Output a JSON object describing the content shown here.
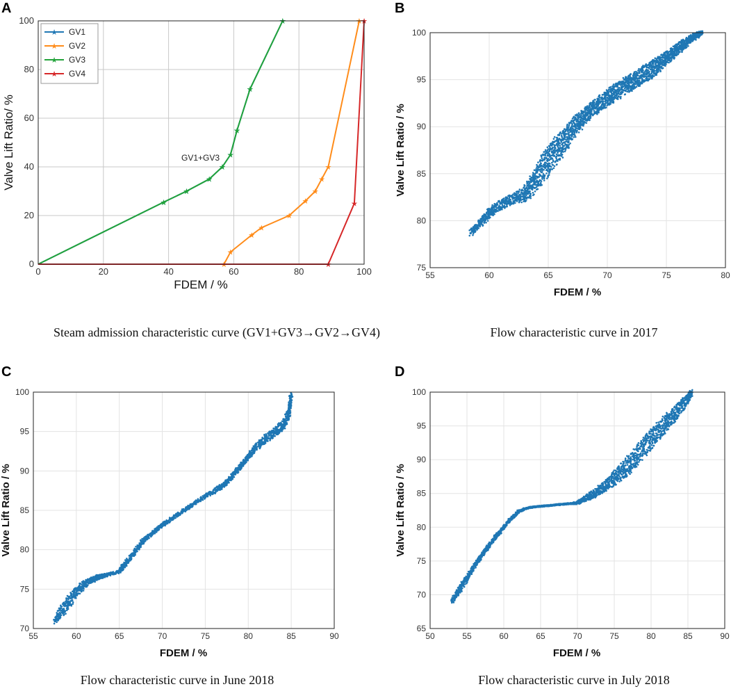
{
  "chart_data": [
    {
      "id": "A",
      "type": "line",
      "panel_label": "A",
      "caption": "Steam admission characteristic curve (GV1+GV3→GV2→GV4)",
      "xlabel": "FDEM / %",
      "ylabel": "Valve Lift Ratio/ %",
      "xlim": [
        0,
        100
      ],
      "ylim": [
        0,
        100
      ],
      "xticks": [
        0,
        20,
        40,
        60,
        80,
        100
      ],
      "yticks": [
        0,
        20,
        40,
        60,
        80,
        100
      ],
      "grid": true,
      "legend_position": "top-left",
      "annotation": {
        "text": "GV1+GV3",
        "x": 50,
        "y": 43
      },
      "series": [
        {
          "name": "GV1",
          "color": "#1f77b4",
          "x": [
            0,
            38.5,
            45.5,
            52.5,
            56.5,
            59,
            61,
            65,
            75
          ],
          "y": [
            0,
            25.5,
            30,
            35,
            40,
            45,
            55,
            72,
            100
          ]
        },
        {
          "name": "GV2",
          "color": "#ff8c1a",
          "x": [
            0,
            57,
            59,
            65.5,
            68.5,
            77,
            82,
            85,
            87,
            89,
            98.5
          ],
          "y": [
            0,
            0,
            5,
            12,
            15,
            20,
            26,
            30,
            35,
            40,
            100
          ]
        },
        {
          "name": "GV3",
          "color": "#22a33a",
          "x": [
            0,
            38.5,
            45.5,
            52.5,
            56.5,
            59,
            61,
            65,
            75
          ],
          "y": [
            0,
            25.5,
            30,
            35,
            40,
            45,
            55,
            72,
            100
          ]
        },
        {
          "name": "GV4",
          "color": "#d62728",
          "x": [
            0,
            89,
            97,
            100
          ],
          "y": [
            0,
            0,
            25,
            100
          ]
        }
      ]
    },
    {
      "id": "B",
      "type": "scatter",
      "panel_label": "B",
      "caption": "Flow characteristic curve in 2017",
      "xlabel": "FDEM / %",
      "ylabel": "Valve Lift Ratio / %",
      "xlim": [
        55,
        80
      ],
      "ylim": [
        75,
        100
      ],
      "xticks": [
        55,
        60,
        65,
        70,
        75,
        80
      ],
      "yticks": [
        75,
        80,
        85,
        90,
        95,
        100
      ],
      "grid": true,
      "series": [
        {
          "name": "data",
          "color": "#1f77b4",
          "x": [
            58.5,
            59.3,
            60,
            60.7,
            61.5,
            62.3,
            63,
            63.5,
            64,
            64.5,
            65,
            65.5,
            66,
            66.5,
            67,
            67.5,
            68,
            68.5,
            69,
            69.5,
            70,
            70.5,
            71,
            71.5,
            72,
            72.5,
            73,
            73.5,
            74,
            74.5,
            75,
            75.5,
            76,
            76.5,
            77,
            77.5,
            78
          ],
          "y": [
            78.7,
            79.8,
            80.8,
            81.5,
            82,
            82.5,
            82.8,
            83.6,
            84.6,
            85.5,
            86.4,
            87.2,
            88,
            88.8,
            89.6,
            90.4,
            91,
            91.6,
            92.1,
            92.6,
            93.1,
            93.5,
            93.9,
            94.3,
            94.7,
            95.1,
            95.5,
            95.9,
            96.3,
            96.8,
            97.3,
            97.8,
            98.3,
            98.8,
            99.3,
            99.7,
            100
          ],
          "spread": [
            0.3,
            0.4,
            0.5,
            0.5,
            0.5,
            0.6,
            0.8,
            1.1,
            1.3,
            1.5,
            1.6,
            1.6,
            1.5,
            1.3,
            1.1,
            1.0,
            0.9,
            0.8,
            0.8,
            0.8,
            0.9,
            0.9,
            0.9,
            0.9,
            0.9,
            0.9,
            0.9,
            0.9,
            0.9,
            0.8,
            0.7,
            0.6,
            0.6,
            0.5,
            0.4,
            0.3,
            0.2
          ]
        }
      ]
    },
    {
      "id": "C",
      "type": "scatter",
      "panel_label": "C",
      "caption": "Flow characteristic curve in June 2018",
      "xlabel": "FDEM / %",
      "ylabel": "Valve Lift Ratio / %",
      "xlim": [
        55,
        90
      ],
      "ylim": [
        70,
        100
      ],
      "xticks": [
        55,
        60,
        65,
        70,
        75,
        80,
        85,
        90
      ],
      "yticks": [
        70,
        75,
        80,
        85,
        90,
        95,
        100
      ],
      "grid": true,
      "series": [
        {
          "name": "data",
          "color": "#1f77b4",
          "x": [
            57.5,
            58.5,
            59.5,
            60.5,
            61.5,
            62.5,
            63.5,
            65,
            65.5,
            66.5,
            67.5,
            68.5,
            69.5,
            70.5,
            72,
            73.5,
            75,
            76.5,
            77.5,
            78.5,
            79.5,
            80.5,
            81.5,
            82.5,
            83.5,
            84.3,
            84.8,
            85
          ],
          "y": [
            71,
            72.5,
            74,
            75.2,
            76,
            76.5,
            76.8,
            77.2,
            78,
            79.3,
            80.8,
            81.8,
            82.7,
            83.5,
            84.6,
            85.7,
            86.8,
            87.7,
            88.6,
            89.8,
            91.1,
            92.5,
            93.6,
            94.5,
            95.3,
            96.2,
            97.5,
            100
          ],
          "spread": [
            0.5,
            0.8,
            0.8,
            0.6,
            0.4,
            0.3,
            0.2,
            0.2,
            0.3,
            0.3,
            0.3,
            0.2,
            0.2,
            0.2,
            0.2,
            0.2,
            0.2,
            0.3,
            0.3,
            0.3,
            0.3,
            0.4,
            0.5,
            0.6,
            0.6,
            0.6,
            0.5,
            0.4
          ]
        }
      ]
    },
    {
      "id": "D",
      "type": "scatter",
      "panel_label": "D",
      "caption": "Flow characteristic curve in July 2018",
      "xlabel": "FDEM / %",
      "ylabel": "Valve Lift Ratio / %",
      "xlim": [
        50,
        90
      ],
      "ylim": [
        65,
        100
      ],
      "xticks": [
        50,
        55,
        60,
        65,
        70,
        75,
        80,
        85,
        90
      ],
      "yticks": [
        65,
        70,
        75,
        80,
        85,
        90,
        95,
        100
      ],
      "grid": true,
      "series": [
        {
          "name": "data",
          "color": "#1f77b4",
          "x": [
            53,
            54,
            55,
            56,
            57,
            58,
            59,
            60,
            61,
            62,
            63,
            64,
            65,
            66,
            67,
            68,
            69,
            70,
            71,
            72,
            73,
            74,
            75,
            76,
            77,
            78,
            79,
            80,
            81,
            82,
            83,
            84,
            85,
            85.5
          ],
          "y": [
            69,
            70.8,
            72.5,
            74.2,
            75.8,
            77.3,
            78.7,
            80,
            81.3,
            82.3,
            82.8,
            83,
            83.1,
            83.2,
            83.3,
            83.4,
            83.5,
            83.6,
            84.2,
            84.8,
            85.5,
            86.3,
            87.2,
            88.2,
            89.3,
            90.5,
            91.8,
            93,
            94.2,
            95.4,
            96.6,
            97.8,
            99,
            100
          ],
          "spread": [
            0.4,
            0.5,
            0.5,
            0.3,
            0.3,
            0.3,
            0.3,
            0.2,
            0.2,
            0.2,
            0.1,
            0.1,
            0.1,
            0.1,
            0.1,
            0.1,
            0.1,
            0.2,
            0.4,
            0.6,
            0.7,
            0.9,
            1.1,
            1.3,
            1.4,
            1.5,
            1.5,
            1.5,
            1.4,
            1.3,
            1.2,
            1.0,
            0.7,
            0.4
          ]
        }
      ]
    }
  ]
}
